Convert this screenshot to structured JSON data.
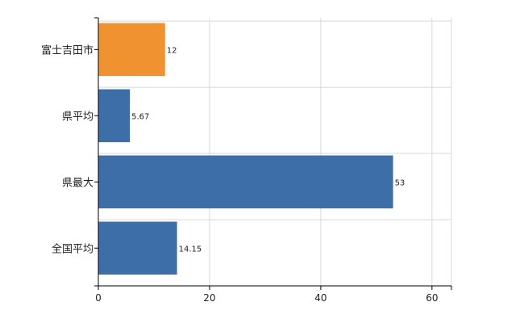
{
  "chart_data": {
    "type": "bar",
    "orientation": "horizontal",
    "title": "",
    "xlabel": "",
    "ylabel": "",
    "categories": [
      "富士吉田市",
      "県平均",
      "県最大",
      "全国平均"
    ],
    "values": [
      12,
      5.67,
      53,
      14.15
    ],
    "data_labels": [
      "12",
      "5.67",
      "53",
      "14.15"
    ],
    "xlim": [
      0,
      63.5
    ],
    "x_ticks": [
      0,
      20,
      40,
      60
    ],
    "x_tick_labels": [
      "0",
      "20",
      "40",
      "60"
    ],
    "grid": true,
    "legend": "none",
    "colors": {
      "highlight": "#f0922f",
      "default": "#3e6ea8",
      "grid": "#d9d9d9",
      "axis": "#000000"
    },
    "highlight_index": 0
  }
}
